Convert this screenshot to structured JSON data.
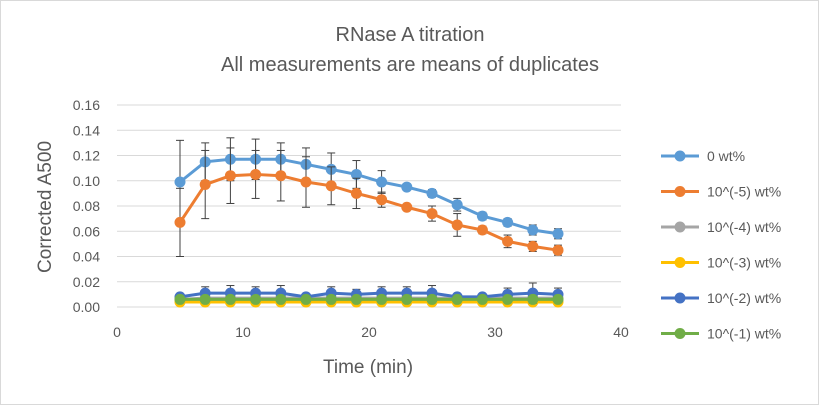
{
  "chart_data": {
    "type": "line",
    "title": "RNase A titration",
    "subtitle": "All measurements are means of duplicates",
    "xlabel": "Time (min)",
    "ylabel": "Corrected A500",
    "xlim": [
      0,
      40
    ],
    "ylim": [
      0,
      0.16
    ],
    "x_ticks": [
      "0",
      "10",
      "20",
      "30",
      "40"
    ],
    "y_ticks": [
      "0.00",
      "0.02",
      "0.04",
      "0.06",
      "0.08",
      "0.10",
      "0.12",
      "0.14",
      "0.16"
    ],
    "grid": "horizontal",
    "legend": "right",
    "x": [
      5,
      7,
      9,
      11,
      13,
      15,
      17,
      19,
      21,
      23,
      25,
      27,
      29,
      31,
      33,
      35
    ],
    "series": [
      {
        "name": "0 wt%",
        "color": "#5b9bd5",
        "values": [
          0.099,
          0.115,
          0.117,
          0.117,
          0.117,
          0.113,
          0.109,
          0.105,
          0.099,
          0.095,
          0.09,
          0.081,
          0.072,
          0.067,
          0.061,
          0.058
        ],
        "errors": [
          0.033,
          0.015,
          0.017,
          0.016,
          0.013,
          0.013,
          0.013,
          0.011,
          0.009,
          0.002,
          0.003,
          0.005,
          0.003,
          0.003,
          0.004,
          0.004
        ]
      },
      {
        "name": "10^(-5) wt%",
        "color": "#ed7d31",
        "values": [
          0.067,
          0.097,
          0.104,
          0.105,
          0.104,
          0.099,
          0.096,
          0.09,
          0.085,
          0.079,
          0.074,
          0.065,
          0.061,
          0.052,
          0.048,
          0.045
        ],
        "errors": [
          0.027,
          0.027,
          0.022,
          0.019,
          0.02,
          0.02,
          0.015,
          0.012,
          0.006,
          0.002,
          0.006,
          0.009,
          0.003,
          0.005,
          0.004,
          0.004
        ]
      },
      {
        "name": "10^(-4) wt%",
        "color": "#a5a5a5",
        "values": [
          0.006,
          0.007,
          0.007,
          0.007,
          0.007,
          0.007,
          0.007,
          0.007,
          0.007,
          0.007,
          0.007,
          0.007,
          0.007,
          0.007,
          0.007,
          0.007
        ],
        "errors": [
          0.001,
          0.001,
          0.001,
          0.001,
          0.001,
          0.001,
          0.001,
          0.001,
          0.001,
          0.001,
          0.001,
          0.001,
          0.001,
          0.001,
          0.001,
          0.001
        ]
      },
      {
        "name": "10^(-3) wt%",
        "color": "#ffc000",
        "values": [
          0.004,
          0.004,
          0.004,
          0.004,
          0.004,
          0.004,
          0.004,
          0.004,
          0.004,
          0.004,
          0.004,
          0.004,
          0.004,
          0.004,
          0.004,
          0.004
        ],
        "errors": [
          0.001,
          0.001,
          0.001,
          0.001,
          0.001,
          0.001,
          0.001,
          0.001,
          0.001,
          0.001,
          0.001,
          0.001,
          0.001,
          0.001,
          0.001,
          0.001
        ]
      },
      {
        "name": "10^(-2) wt%",
        "color": "#4472c4",
        "values": [
          0.008,
          0.011,
          0.011,
          0.011,
          0.011,
          0.008,
          0.011,
          0.01,
          0.011,
          0.011,
          0.011,
          0.008,
          0.008,
          0.01,
          0.011,
          0.01
        ],
        "errors": [
          0.002,
          0.005,
          0.006,
          0.005,
          0.006,
          0.002,
          0.005,
          0.004,
          0.005,
          0.005,
          0.006,
          0.002,
          0.002,
          0.005,
          0.008,
          0.005
        ]
      },
      {
        "name": "10^(-1) wt%",
        "color": "#70ad47",
        "values": [
          0.006,
          0.006,
          0.006,
          0.006,
          0.006,
          0.006,
          0.006,
          0.006,
          0.006,
          0.006,
          0.006,
          0.006,
          0.006,
          0.006,
          0.006,
          0.006
        ],
        "errors": [
          0.001,
          0.001,
          0.001,
          0.001,
          0.001,
          0.001,
          0.001,
          0.001,
          0.001,
          0.001,
          0.001,
          0.001,
          0.001,
          0.001,
          0.001,
          0.001
        ]
      }
    ]
  }
}
